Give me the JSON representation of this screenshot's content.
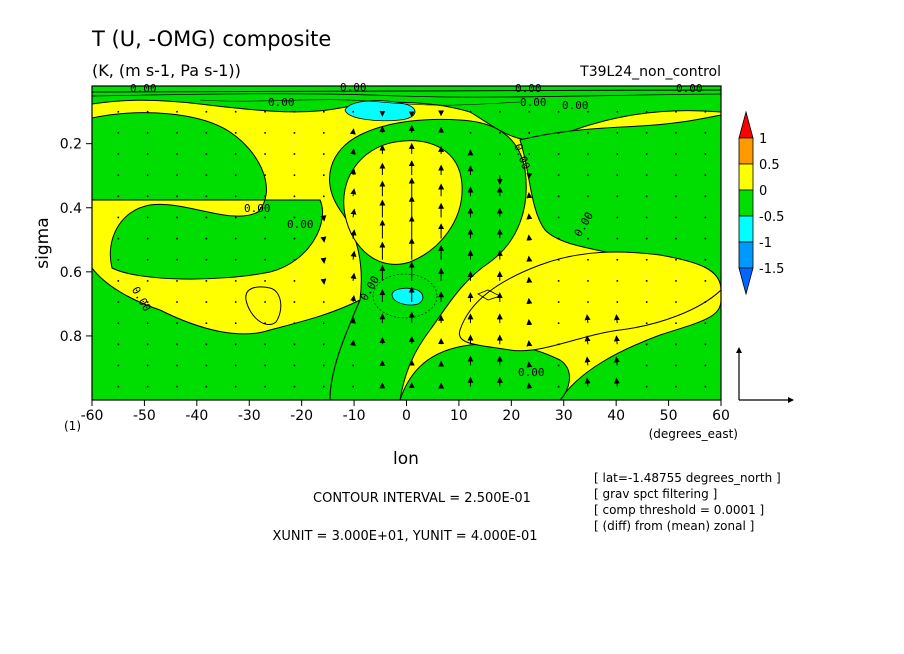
{
  "title": "T (U, -OMG) composite",
  "subtitle": "(K, (m s-1, Pa s-1))",
  "run_label": "T39L24_non_control",
  "corner_label": "(1)",
  "xaxis_unit_label": "(degrees_east)",
  "xaxis_label": "lon",
  "yaxis_label": "sigma",
  "contour_interval_text": "CONTOUR INTERVAL = 2.500E-01",
  "unit_vector_text": "XUNIT = 3.000E+01, YUNIT = 4.000E-01",
  "notes": [
    "[ lat=-1.48755 degrees_north ]",
    "[ grav spct filtering ]",
    "[ comp threshold = 0.0001 ]",
    "[ (diff) from (mean) zonal ]"
  ],
  "chart_data": {
    "type": "heatmap",
    "subtype": "shaded contour with vector overlay",
    "x_ticks": [
      "-60",
      "-50",
      "-40",
      "-30",
      "-20",
      "-10",
      "0",
      "10",
      "20",
      "30",
      "40",
      "50",
      "60"
    ],
    "y_ticks": [
      "0.2",
      "0.4",
      "0.6",
      "0.8"
    ],
    "xlim": [
      -60,
      60
    ],
    "ylim": [
      1.0,
      0.02
    ],
    "contour_interval": 0.25,
    "xunit": 30,
    "yunit": 0.4,
    "colorbar": {
      "labels": [
        "1",
        "0.5",
        "0",
        "-0.5",
        "-1",
        "-1.5"
      ],
      "colors": [
        "#ff0000",
        "#ff9900",
        "#ffff00",
        "#00dd00",
        "#00ffff",
        "#0099ff",
        "#0066ff"
      ]
    },
    "colors": {
      "positive": "#ffff00",
      "negative": "#00dd00",
      "strong_negative": "#00ffff"
    },
    "contour_labels": [
      "0.00",
      "0.00",
      "0.00",
      "0.00",
      "0.00",
      "0.00",
      "0.00",
      "0.00",
      "0.00",
      "0.00",
      "0.00",
      "0.00",
      "0.00",
      "0.00"
    ]
  }
}
